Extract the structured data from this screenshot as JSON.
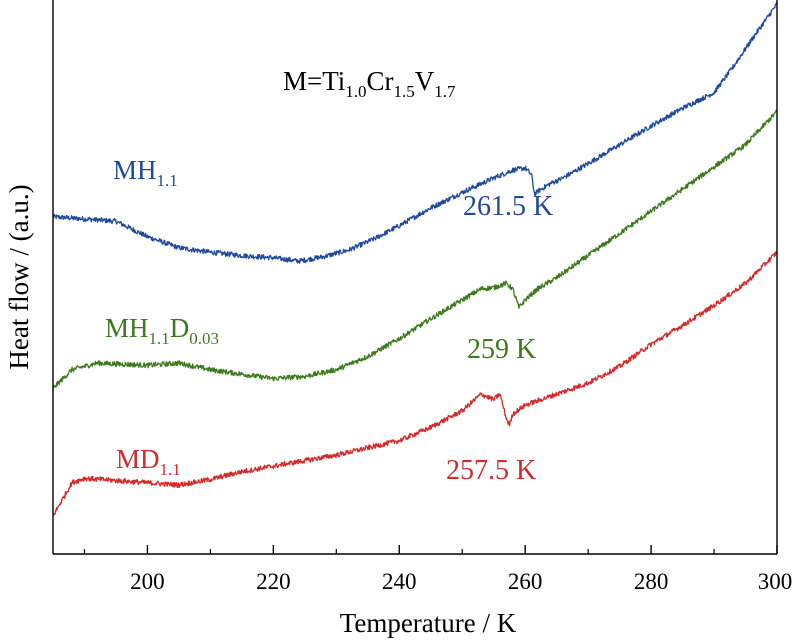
{
  "chart_data": {
    "type": "line",
    "xlabel": "Temperature / K",
    "ylabel": "Heat flow / (a.u.)",
    "xlim": [
      185,
      300
    ],
    "x_ticks": [
      200,
      220,
      240,
      260,
      280,
      300
    ],
    "y_ticks_shown": false,
    "grid": false,
    "formula_label": {
      "prefix": "M=Ti",
      "s1": "1.0",
      "el2": "Cr",
      "s2": "1.5",
      "el3": "V",
      "s3": "1.7"
    },
    "series": [
      {
        "name": "MH1.1",
        "label": {
          "main": "MH",
          "sub": "1.1"
        },
        "color": "#1f4a9c",
        "transition_label": "261.5 K",
        "x": [
          185,
          190,
          195,
          200,
          205,
          210,
          215,
          220,
          224,
          228,
          232,
          236,
          240,
          245,
          250,
          255,
          258,
          260,
          261,
          261.5,
          262,
          264,
          266,
          270,
          275,
          280,
          285,
          290,
          293,
          296,
          300
        ],
        "y": [
          2.7,
          2.68,
          2.66,
          2.52,
          2.42,
          2.38,
          2.35,
          2.33,
          2.3,
          2.34,
          2.4,
          2.5,
          2.62,
          2.78,
          2.92,
          3.05,
          3.12,
          3.14,
          3.08,
          2.9,
          2.93,
          3.0,
          3.05,
          3.18,
          3.35,
          3.52,
          3.68,
          3.82,
          4.05,
          4.3,
          4.62
        ]
      },
      {
        "name": "MH1.1D0.03",
        "label": {
          "main": "MH",
          "sub": "1.1",
          "main2": "D",
          "sub2": "0.03"
        },
        "color": "#3d7a1e",
        "transition_label": "259 K",
        "x": [
          185,
          188,
          192,
          200,
          205,
          210,
          215,
          220,
          225,
          230,
          235,
          240,
          245,
          250,
          253,
          255,
          257,
          258,
          259,
          260,
          262,
          265,
          270,
          275,
          280,
          285,
          290,
          295,
          300
        ],
        "y": [
          1.15,
          1.32,
          1.38,
          1.36,
          1.38,
          1.32,
          1.28,
          1.24,
          1.26,
          1.32,
          1.44,
          1.6,
          1.78,
          1.95,
          2.05,
          2.06,
          2.1,
          2.05,
          1.88,
          1.95,
          2.05,
          2.15,
          2.35,
          2.55,
          2.75,
          2.95,
          3.15,
          3.35,
          3.65
        ]
      },
      {
        "name": "MD1.1",
        "label": {
          "main": "MD",
          "sub": "1.1"
        },
        "color": "#d42a2a",
        "transition_label": "257.5 K",
        "x": [
          185,
          186,
          188,
          190,
          195,
          200,
          205,
          210,
          215,
          220,
          230,
          240,
          245,
          250,
          253,
          255,
          256,
          257,
          257.5,
          258,
          260,
          265,
          270,
          275,
          280,
          285,
          290,
          295,
          300
        ],
        "y": [
          0.0,
          0.1,
          0.3,
          0.34,
          0.32,
          0.3,
          0.28,
          0.33,
          0.4,
          0.45,
          0.55,
          0.68,
          0.8,
          0.95,
          1.1,
          1.05,
          1.1,
          0.88,
          0.82,
          0.92,
          1.0,
          1.1,
          1.2,
          1.35,
          1.55,
          1.72,
          1.9,
          2.1,
          2.38
        ]
      }
    ]
  }
}
